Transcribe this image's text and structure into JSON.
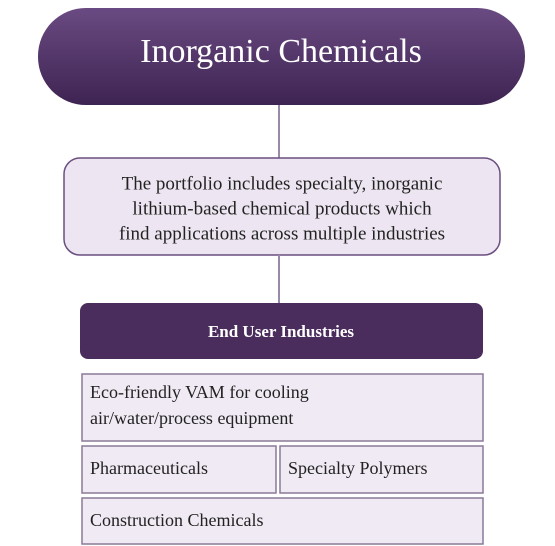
{
  "title": "Inorganic Chemicals",
  "description": {
    "lines": [
      "The portfolio includes specialty, inorganic",
      "lithium-based chemical products which",
      "find applications across multiple industries"
    ]
  },
  "section": {
    "title": "End User Industries",
    "items": [
      {
        "lines": [
          "Eco-friendly VAM for cooling",
          "air/water/process equipment"
        ]
      },
      {
        "lines": [
          "Pharmaceuticals"
        ]
      },
      {
        "lines": [
          "Specialty Polymers"
        ]
      },
      {
        "lines": [
          "Construction Chemicals"
        ]
      }
    ]
  }
}
